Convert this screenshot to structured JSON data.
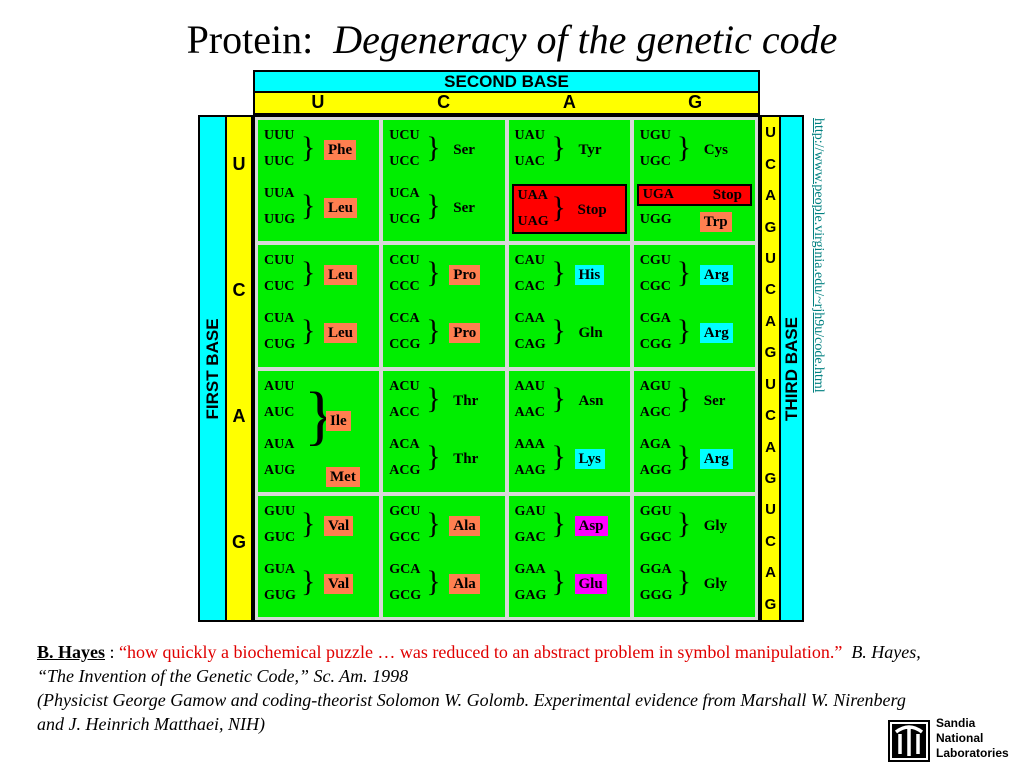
{
  "title": {
    "main": "Protein:",
    "italic": "Degeneracy of the genetic code"
  },
  "table": {
    "second_base_label": "SECOND BASE",
    "first_base_label": "FIRST BASE",
    "third_base_label": "THIRD BASE",
    "second_letters": [
      "U",
      "C",
      "A",
      "G"
    ],
    "first_letters": [
      "U",
      "C",
      "A",
      "G"
    ],
    "third_letters": [
      "U",
      "C",
      "A",
      "G",
      "U",
      "C",
      "A",
      "G",
      "U",
      "C",
      "A",
      "G",
      "U",
      "C",
      "A",
      "G"
    ]
  },
  "cells": {
    "UU": {
      "p0": [
        "UUU",
        "UUC",
        "Phe"
      ],
      "p1": [
        "UUA",
        "UUG",
        "Leu"
      ]
    },
    "UC": {
      "p0": [
        "UCU",
        "UCC",
        "Ser"
      ],
      "p1": [
        "UCA",
        "UCG",
        "Ser"
      ]
    },
    "UA": {
      "p0": [
        "UAU",
        "UAC",
        "Tyr"
      ],
      "p1": [
        "UAA",
        "UAG",
        "Stop"
      ]
    },
    "UG": {
      "p0": [
        "UGU",
        "UGC",
        "Cys"
      ],
      "p1a": [
        "UGA",
        "Stop"
      ],
      "p1b": [
        "UGG",
        "Trp"
      ]
    },
    "CU": {
      "p0": [
        "CUU",
        "CUC",
        "Leu"
      ],
      "p1": [
        "CUA",
        "CUG",
        "Leu"
      ]
    },
    "CC": {
      "p0": [
        "CCU",
        "CCC",
        "Pro"
      ],
      "p1": [
        "CCA",
        "CCG",
        "Pro"
      ]
    },
    "CA": {
      "p0": [
        "CAU",
        "CAC",
        "His"
      ],
      "p1": [
        "CAA",
        "CAG",
        "Gln"
      ]
    },
    "CG": {
      "p0": [
        "CGU",
        "CGC",
        "Arg"
      ],
      "p1": [
        "CGA",
        "CGG",
        "Arg"
      ]
    },
    "AU": {
      "codons": [
        "AUU",
        "AUC",
        "AUA",
        "AUG"
      ],
      "ile": "Ile",
      "met": "Met"
    },
    "AC": {
      "p0": [
        "ACU",
        "ACC",
        "Thr"
      ],
      "p1": [
        "ACA",
        "ACG",
        "Thr"
      ]
    },
    "AA": {
      "p0": [
        "AAU",
        "AAC",
        "Asn"
      ],
      "p1": [
        "AAA",
        "AAG",
        "Lys"
      ]
    },
    "AG": {
      "p0": [
        "AGU",
        "AGC",
        "Ser"
      ],
      "p1": [
        "AGA",
        "AGG",
        "Arg"
      ]
    },
    "GU": {
      "p0": [
        "GUU",
        "GUC",
        "Val"
      ],
      "p1": [
        "GUA",
        "GUG",
        "Val"
      ]
    },
    "GC": {
      "p0": [
        "GCU",
        "GCC",
        "Ala"
      ],
      "p1": [
        "GCA",
        "GCG",
        "Ala"
      ]
    },
    "GA": {
      "p0": [
        "GAU",
        "GAC",
        "Asp"
      ],
      "p1": [
        "GAA",
        "GAG",
        "Glu"
      ]
    },
    "GG": {
      "p0": [
        "GGU",
        "GGC",
        "Gly"
      ],
      "p1": [
        "GGA",
        "GGG",
        "Gly"
      ]
    }
  },
  "url": "http://www.people.virginia.edu/~rjh9u/code.html",
  "quote": {
    "author": "B. Hayes",
    "sep": " : ",
    "text": "“how quickly a biochemical puzzle … was reduced to an abstract problem in symbol manipulation.”",
    "cite": "B. Hayes, “The Invention of the Genetic Code,” Sc. Am. 1998",
    "note": "(Physicist George Gamow and coding-theorist Solomon W. Golomb.  Experimental evidence from Marshall W. Nirenberg and J. Heinrich Matthaei, NIH)"
  },
  "logo": {
    "lines": [
      "Sandia",
      "National",
      "Laboratories"
    ]
  },
  "colors": {
    "cell_green": "#00ee00",
    "header_cyan": "#00ffff",
    "letter_yellow": "#ffff00",
    "stop_red": "#ff0000",
    "salmon": "#ff7f50",
    "magenta": "#ff00ff",
    "url_teal": "#008080"
  }
}
